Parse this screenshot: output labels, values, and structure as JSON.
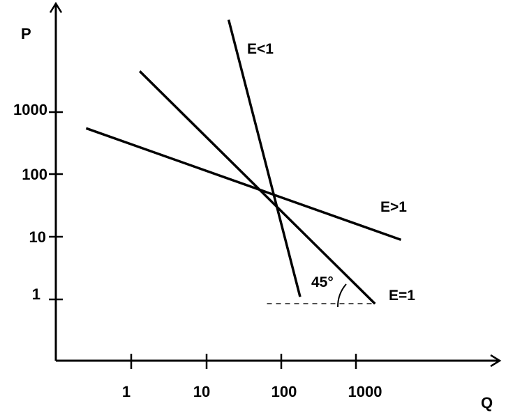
{
  "chart_data": {
    "type": "line",
    "scale": "log-log",
    "xlabel": "Q",
    "ylabel": "P",
    "x_ticks": [
      "1",
      "10",
      "100",
      "1000"
    ],
    "y_ticks": [
      "1",
      "10",
      "100",
      "1000"
    ],
    "series": [
      {
        "name": "E<1",
        "x": [
          20,
          180
        ],
        "y": [
          30000,
          1.1
        ]
      },
      {
        "name": "E=1",
        "x": [
          1.3,
          1800
        ],
        "y": [
          4500,
          0.85
        ]
      },
      {
        "name": "E>1",
        "x": [
          0.25,
          4000
        ],
        "y": [
          550,
          9
        ]
      }
    ],
    "annotations": [
      {
        "text": "45°"
      }
    ],
    "guide_line": {
      "style": "dashed",
      "y": 0.85,
      "x_range": [
        65,
        1800
      ]
    }
  }
}
